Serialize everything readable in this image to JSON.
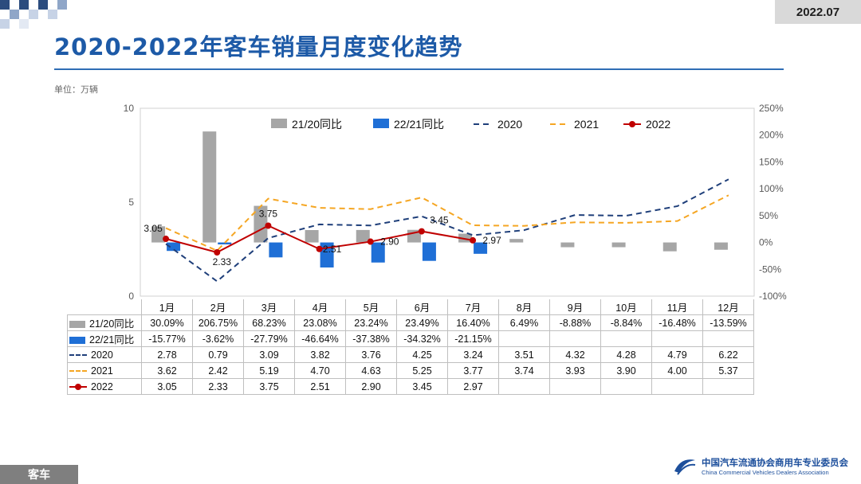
{
  "header": {
    "title": "2020-2022年客车销量月度变化趋势",
    "period": "2022.07",
    "unit": "单位：万辆"
  },
  "footer": {
    "category": "客车",
    "org_cn": "中国汽车流通协会商用车专业委员会",
    "org_en": "China Commercial Vehicles Dealers Association"
  },
  "colors": {
    "title": "#1d5aa7",
    "bar_2120": "#a6a6a6",
    "bar_2221": "#1f6fd6",
    "line_2020": "#1f3f7a",
    "line_2021": "#f5a623",
    "line_2022": "#c00000"
  },
  "chart_data": {
    "type": "bar+line",
    "categories": [
      "1月",
      "2月",
      "3月",
      "4月",
      "5月",
      "6月",
      "7月",
      "8月",
      "9月",
      "10月",
      "11月",
      "12月"
    ],
    "left_axis": {
      "ylim": [
        0,
        10
      ],
      "ticks": [
        "0",
        "5",
        "10"
      ]
    },
    "right_axis": {
      "ylim": [
        -100,
        250
      ],
      "ticks": [
        "-100%",
        "-50%",
        "0%",
        "50%",
        "100%",
        "150%",
        "200%",
        "250%"
      ]
    },
    "series": [
      {
        "name": "21/20同比",
        "kind": "bar",
        "axis": "right",
        "values": [
          30.09,
          206.75,
          68.23,
          23.08,
          23.24,
          23.49,
          16.4,
          6.49,
          -8.88,
          -8.84,
          -16.48,
          -13.59
        ],
        "labels": [
          "30.09%",
          "206.75%",
          "68.23%",
          "23.08%",
          "23.24%",
          "23.49%",
          "16.40%",
          "6.49%",
          "-8.88%",
          "-8.84%",
          "-16.48%",
          "-13.59%"
        ]
      },
      {
        "name": "22/21同比",
        "kind": "bar",
        "axis": "right",
        "values": [
          -15.77,
          -3.62,
          -27.79,
          -46.64,
          -37.38,
          -34.32,
          -21.15,
          null,
          null,
          null,
          null,
          null
        ],
        "labels": [
          "-15.77%",
          "-3.62%",
          "-27.79%",
          "-46.64%",
          "-37.38%",
          "-34.32%",
          "-21.15%",
          "",
          "",
          "",
          "",
          ""
        ]
      },
      {
        "name": "2020",
        "kind": "line-dashed",
        "axis": "left",
        "values": [
          2.78,
          0.79,
          3.09,
          3.82,
          3.76,
          4.25,
          3.24,
          3.51,
          4.32,
          4.28,
          4.79,
          6.22
        ],
        "labels": [
          "2.78",
          "0.79",
          "3.09",
          "3.82",
          "3.76",
          "4.25",
          "3.24",
          "3.51",
          "4.32",
          "4.28",
          "4.79",
          "6.22"
        ]
      },
      {
        "name": "2021",
        "kind": "line-dashed",
        "axis": "left",
        "values": [
          3.62,
          2.42,
          5.19,
          4.7,
          4.63,
          5.25,
          3.77,
          3.74,
          3.93,
          3.9,
          4.0,
          5.37
        ],
        "labels": [
          "3.62",
          "2.42",
          "5.19",
          "4.70",
          "4.63",
          "5.25",
          "3.77",
          "3.74",
          "3.93",
          "3.90",
          "4.00",
          "5.37"
        ]
      },
      {
        "name": "2022",
        "kind": "line-marker",
        "axis": "left",
        "values": [
          3.05,
          2.33,
          3.75,
          2.51,
          2.9,
          3.45,
          2.97,
          null,
          null,
          null,
          null,
          null
        ],
        "labels": [
          "3.05",
          "2.33",
          "3.75",
          "2.51",
          "2.90",
          "3.45",
          "2.97",
          "",
          "",
          "",
          "",
          ""
        ]
      }
    ]
  }
}
